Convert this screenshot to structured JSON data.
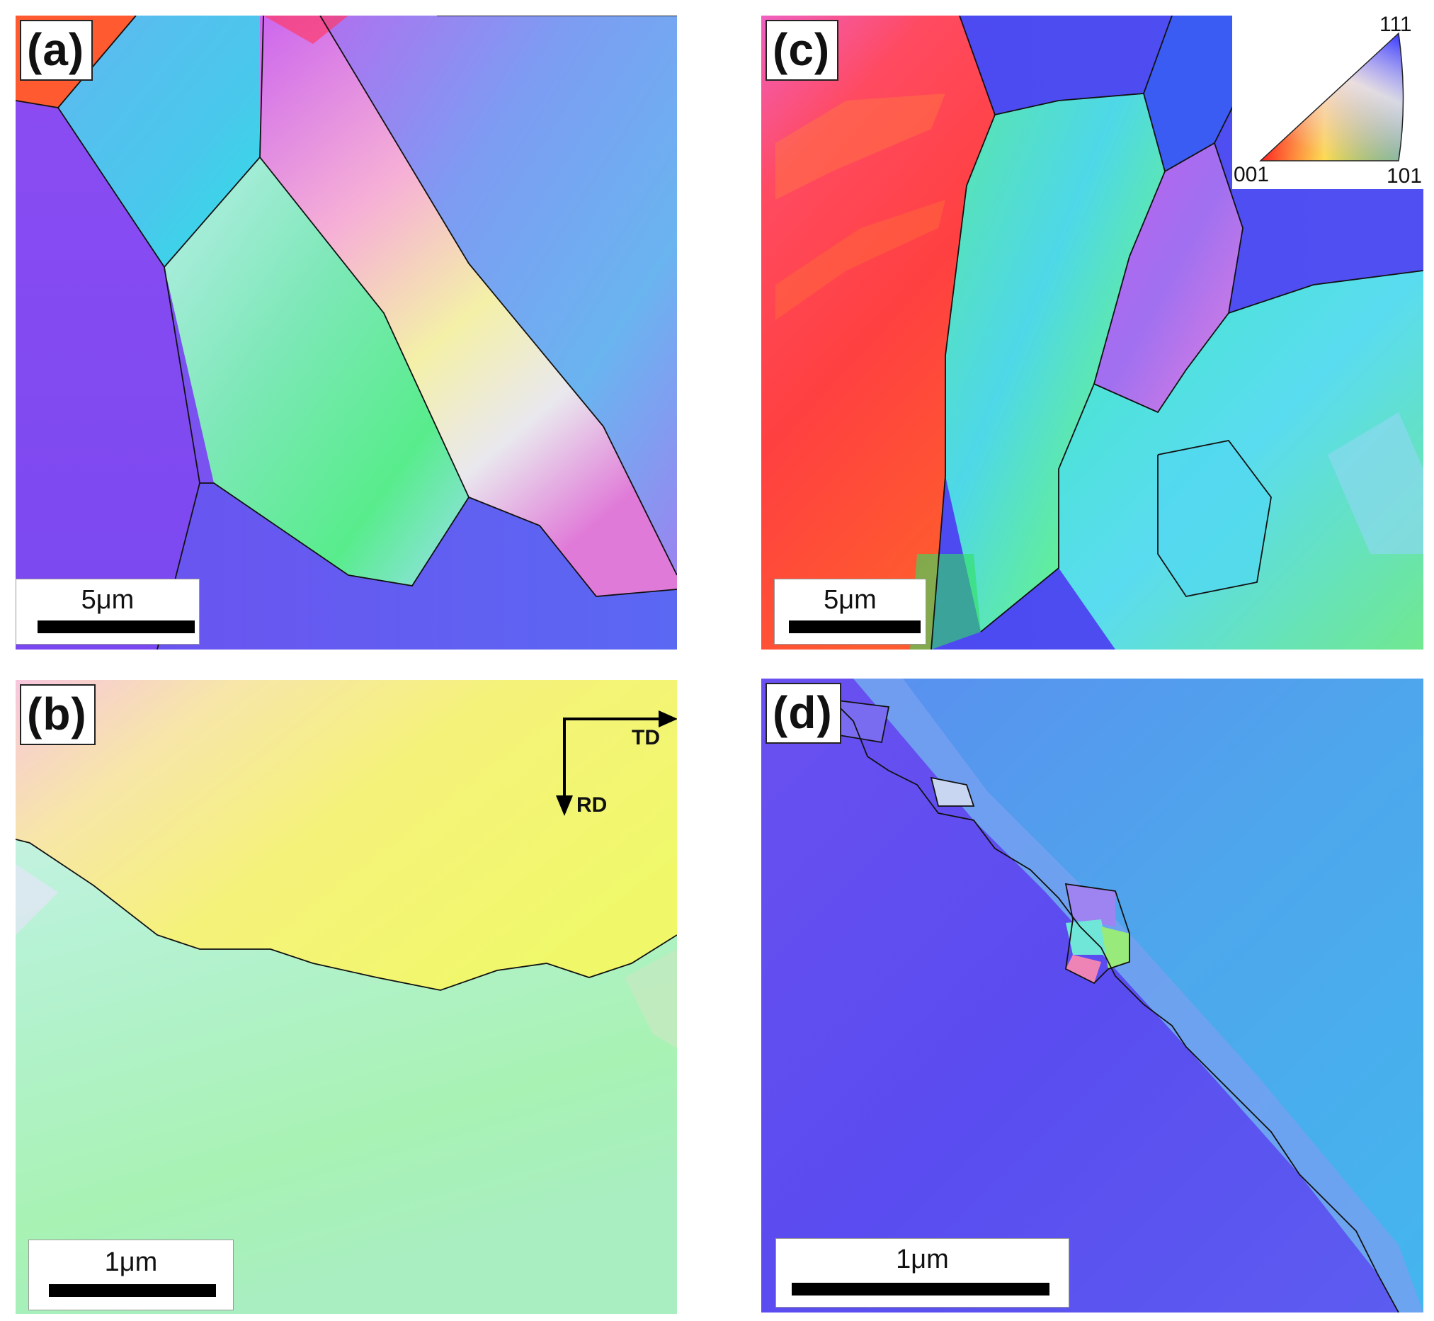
{
  "panels": {
    "a": {
      "label": "(a)",
      "scale": "5μm"
    },
    "b": {
      "label": "(b)",
      "scale": "1μm",
      "axes": {
        "horizontal": "TD",
        "vertical": "RD"
      }
    },
    "c": {
      "label": "(c)",
      "scale": "5μm",
      "ipf_legend": {
        "top": "111",
        "left": "001",
        "right": "101"
      }
    },
    "d": {
      "label": "(d)",
      "scale": "1μm"
    }
  },
  "colors": {
    "orient_001": "#ff2a2a",
    "orient_101": "#33e05a",
    "orient_111": "#3a3aff",
    "grain_boundary": "#111111"
  }
}
